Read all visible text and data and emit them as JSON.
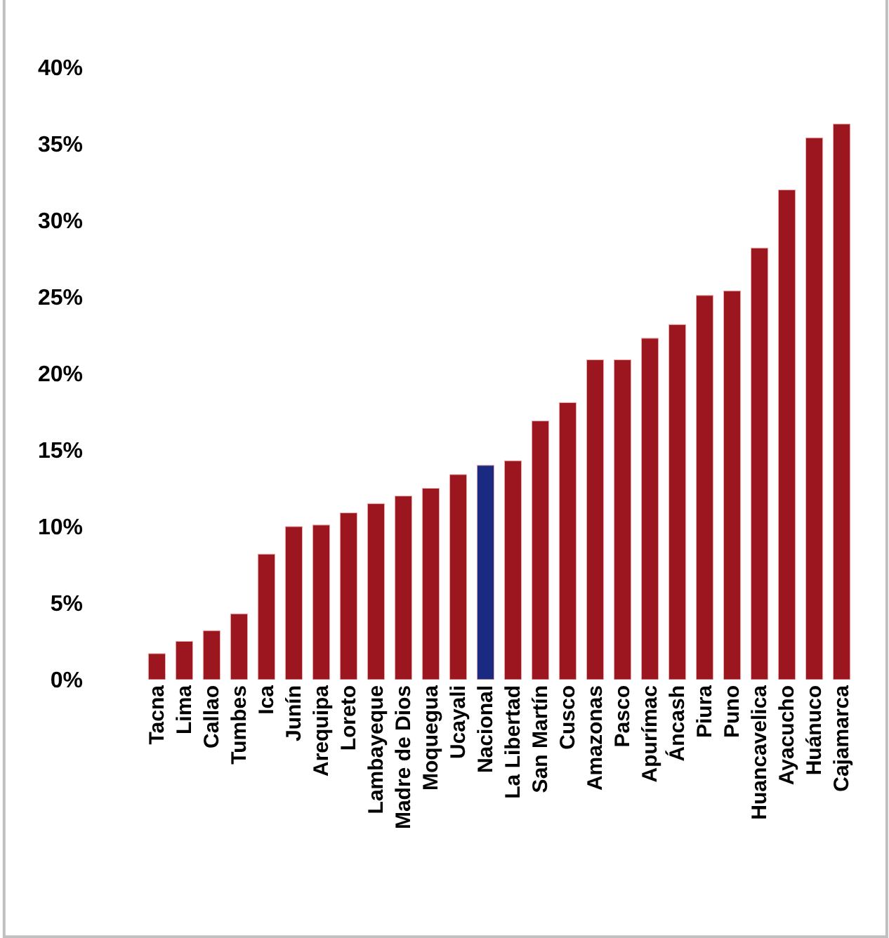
{
  "chart_data": {
    "type": "bar",
    "categories": [
      "Tacna",
      "Lima",
      "Callao",
      "Tumbes",
      "Ica",
      "Junín",
      "Arequipa",
      "Loreto",
      "Lambayeque",
      "Madre de Dios",
      "Moquegua",
      "Ucayali",
      "Nacional",
      "La Libertad",
      "San Martín",
      "Cusco",
      "Amazonas",
      "Pasco",
      "Apurímac",
      "Áncash",
      "Piura",
      "Puno",
      "Huancavelica",
      "Ayacucho",
      "Huánuco",
      "Cajamarca"
    ],
    "values": [
      1.7,
      2.5,
      3.2,
      4.3,
      8.2,
      10.0,
      10.1,
      10.9,
      11.5,
      12.0,
      12.5,
      13.4,
      14.0,
      14.3,
      16.9,
      18.1,
      20.9,
      20.9,
      22.3,
      23.2,
      25.1,
      25.4,
      28.2,
      32.0,
      35.4,
      36.3
    ],
    "colors": [
      "#9b161e",
      "#9b161e",
      "#9b161e",
      "#9b161e",
      "#9b161e",
      "#9b161e",
      "#9b161e",
      "#9b161e",
      "#9b161e",
      "#9b161e",
      "#9b161e",
      "#9b161e",
      "#1a2a80",
      "#9b161e",
      "#9b161e",
      "#9b161e",
      "#9b161e",
      "#9b161e",
      "#9b161e",
      "#9b161e",
      "#9b161e",
      "#9b161e",
      "#9b161e",
      "#9b161e",
      "#9b161e",
      "#9b161e"
    ],
    "ylim": [
      0,
      40
    ],
    "yticks": [
      {
        "value": 0,
        "label": "0%"
      },
      {
        "value": 5,
        "label": "5%"
      },
      {
        "value": 10,
        "label": "10%"
      },
      {
        "value": 15,
        "label": "15%"
      },
      {
        "value": 20,
        "label": "20%"
      },
      {
        "value": 25,
        "label": "25%"
      },
      {
        "value": 30,
        "label": "30%"
      },
      {
        "value": 35,
        "label": "35%"
      },
      {
        "value": 40,
        "label": "40%"
      }
    ],
    "tick_labels": "xy"
  }
}
